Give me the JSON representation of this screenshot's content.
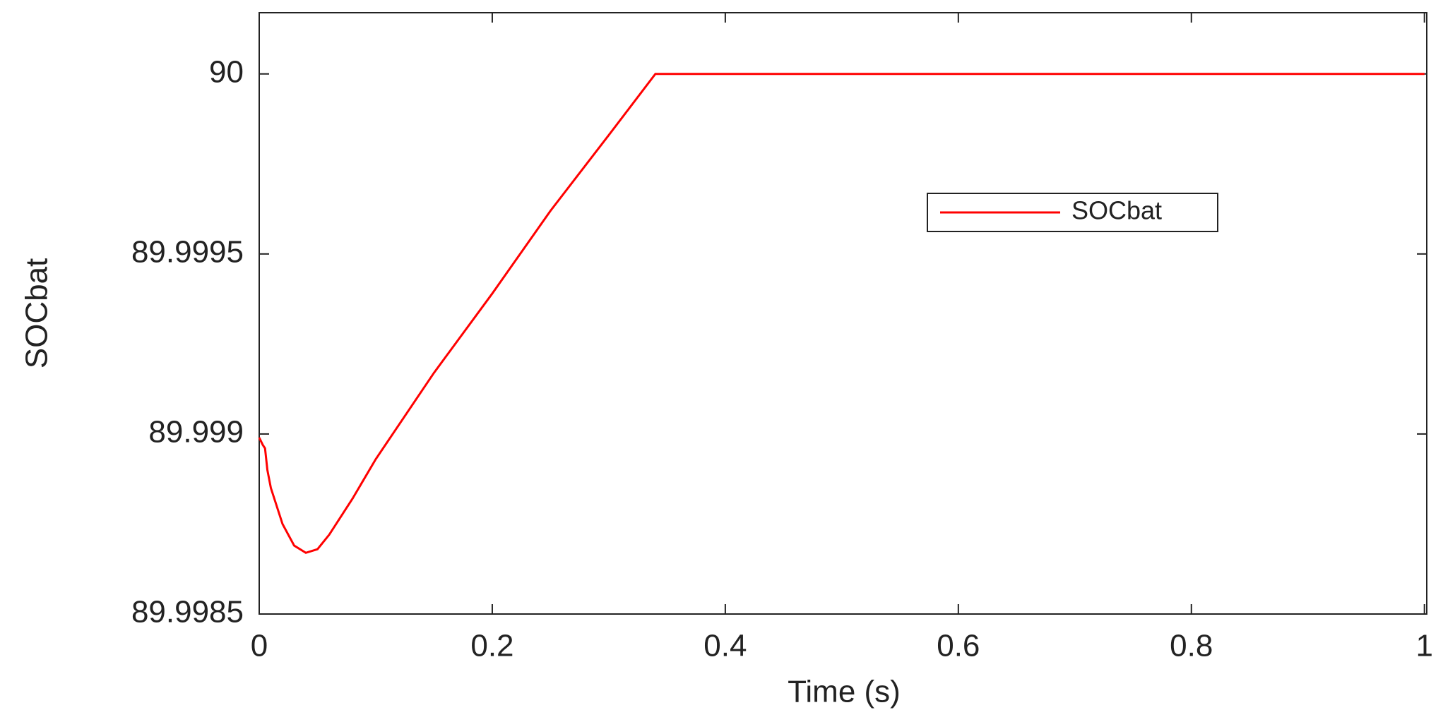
{
  "chart_data": {
    "type": "line",
    "x_label": "Time (s)",
    "y_label": "SOCbat",
    "x": [
      0,
      0.003,
      0.005,
      0.007,
      0.01,
      0.02,
      0.03,
      0.04,
      0.05,
      0.06,
      0.08,
      0.1,
      0.15,
      0.2,
      0.25,
      0.3,
      0.34,
      1
    ],
    "series": [
      {
        "name": "SOCbat",
        "color": "#ff0000",
        "values": [
          89.99899,
          89.99897,
          89.99896,
          89.9989,
          89.99885,
          89.99875,
          89.99869,
          89.99867,
          89.99868,
          89.99872,
          89.99882,
          89.99893,
          89.99917,
          89.99939,
          89.99962,
          89.99983,
          90,
          90
        ]
      }
    ],
    "xlim": [
      0,
      1.002
    ],
    "xticks": [
      0,
      0.2,
      0.4,
      0.6,
      0.8,
      1
    ],
    "ylim": [
      89.9985,
      90.00017
    ],
    "yticks": [
      89.9985,
      89.999,
      89.9995,
      90
    ],
    "grid": false,
    "legend_loc": "upper right"
  }
}
